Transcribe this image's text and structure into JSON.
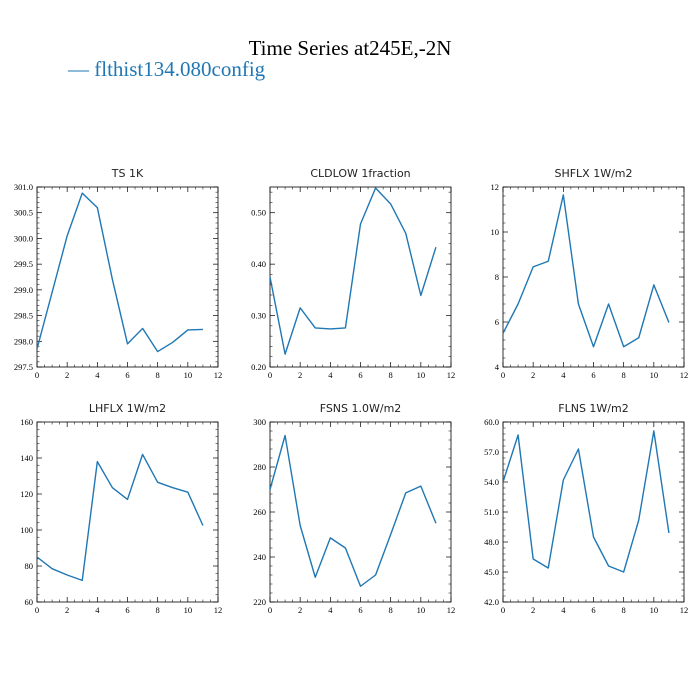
{
  "figure": {
    "title": "Time Series at245E,-2N",
    "legend": [
      {
        "label": "— flthist134.080config",
        "color": "#1f77b4"
      }
    ],
    "line_color": "#1f77b4"
  },
  "chart_data": [
    {
      "type": "line",
      "title": "TS   1K",
      "x": [
        0,
        1,
        2,
        3,
        4,
        5,
        6,
        7,
        8,
        9,
        10,
        11
      ],
      "series": [
        {
          "values": [
            297.85,
            298.95,
            300.05,
            300.88,
            300.6,
            299.2,
            297.95,
            298.25,
            297.8,
            297.98,
            298.22,
            298.23
          ]
        }
      ],
      "xlim": [
        0,
        12
      ],
      "ylim": [
        297.5,
        301.0
      ],
      "xticks": [
        0,
        2,
        4,
        6,
        8,
        10,
        12
      ],
      "yticks": [
        297.5,
        298.0,
        298.5,
        299.0,
        299.5,
        300.0,
        300.5,
        301.0
      ],
      "ytick_labels": [
        "297.5",
        "298.0",
        "298.5",
        "299.0",
        "299.5",
        "300.0",
        "300.5",
        "301.0"
      ],
      "grid": false
    },
    {
      "type": "line",
      "title": "CLDLOW    1fraction",
      "x": [
        0,
        1,
        2,
        3,
        4,
        5,
        6,
        7,
        8,
        9,
        10,
        11
      ],
      "series": [
        {
          "values": [
            0.375,
            0.225,
            0.315,
            0.276,
            0.274,
            0.276,
            0.478,
            0.548,
            0.517,
            0.46,
            0.339,
            0.433
          ]
        }
      ],
      "xlim": [
        0,
        12
      ],
      "ylim": [
        0.2,
        0.55
      ],
      "xticks": [
        0,
        2,
        4,
        6,
        8,
        10,
        12
      ],
      "yticks": [
        0.2,
        0.3,
        0.4,
        0.5
      ],
      "ytick_labels": [
        "0.20",
        "0.30",
        "0.40",
        "0.50"
      ],
      "grid": false
    },
    {
      "type": "line",
      "title": "SHFLX    1W/m2",
      "x": [
        0,
        1,
        2,
        3,
        4,
        5,
        6,
        7,
        8,
        9,
        10,
        11
      ],
      "series": [
        {
          "values": [
            5.5,
            6.8,
            8.45,
            8.7,
            11.65,
            6.8,
            4.9,
            6.8,
            4.9,
            5.3,
            7.65,
            5.98
          ]
        }
      ],
      "xlim": [
        0,
        12
      ],
      "ylim": [
        4,
        12
      ],
      "xticks": [
        0,
        2,
        4,
        6,
        8,
        10,
        12
      ],
      "yticks": [
        4,
        6,
        8,
        10,
        12
      ],
      "ytick_labels": [
        "4",
        "6",
        "8",
        "10",
        "12"
      ],
      "grid": false
    },
    {
      "type": "line",
      "title": "LHFLX    1W/m2",
      "x": [
        0,
        1,
        2,
        3,
        4,
        5,
        6,
        7,
        8,
        9,
        10,
        11
      ],
      "series": [
        {
          "values": [
            85,
            78.5,
            75,
            72,
            138,
            123.5,
            117,
            142,
            126.5,
            123.5,
            121,
            102.5
          ]
        }
      ],
      "xlim": [
        0,
        12
      ],
      "ylim": [
        60,
        160
      ],
      "xticks": [
        0,
        2,
        4,
        6,
        8,
        10,
        12
      ],
      "yticks": [
        60,
        80,
        100,
        120,
        140,
        160
      ],
      "ytick_labels": [
        "60",
        "80",
        "100",
        "120",
        "140",
        "160"
      ],
      "grid": false
    },
    {
      "type": "line",
      "title": "FSNS    1.0W/m2",
      "x": [
        0,
        1,
        2,
        3,
        4,
        5,
        6,
        7,
        8,
        9,
        10,
        11
      ],
      "series": [
        {
          "values": [
            270,
            294,
            254,
            231,
            248.5,
            244,
            227,
            232,
            250,
            268.5,
            271.5,
            255
          ]
        }
      ],
      "xlim": [
        0,
        12
      ],
      "ylim": [
        220,
        300
      ],
      "xticks": [
        0,
        2,
        4,
        6,
        8,
        10,
        12
      ],
      "yticks": [
        220,
        240,
        260,
        280,
        300
      ],
      "ytick_labels": [
        "220",
        "240",
        "260",
        "280",
        "300"
      ],
      "grid": false
    },
    {
      "type": "line",
      "title": "FLNS    1W/m2",
      "x": [
        0,
        1,
        2,
        3,
        4,
        5,
        6,
        7,
        8,
        9,
        10,
        11
      ],
      "series": [
        {
          "values": [
            54,
            58.7,
            46.3,
            45.4,
            54.2,
            57.3,
            48.5,
            45.6,
            45,
            50.2,
            59.1,
            48.9
          ]
        }
      ],
      "xlim": [
        0,
        12
      ],
      "ylim": [
        42,
        60
      ],
      "xticks": [
        0,
        2,
        4,
        6,
        8,
        10,
        12
      ],
      "yticks": [
        42,
        45,
        48,
        51,
        54,
        57,
        60
      ],
      "ytick_labels": [
        "42.0",
        "45.0",
        "48.0",
        "51.0",
        "54.0",
        "57.0",
        "60.0"
      ],
      "grid": false
    }
  ]
}
